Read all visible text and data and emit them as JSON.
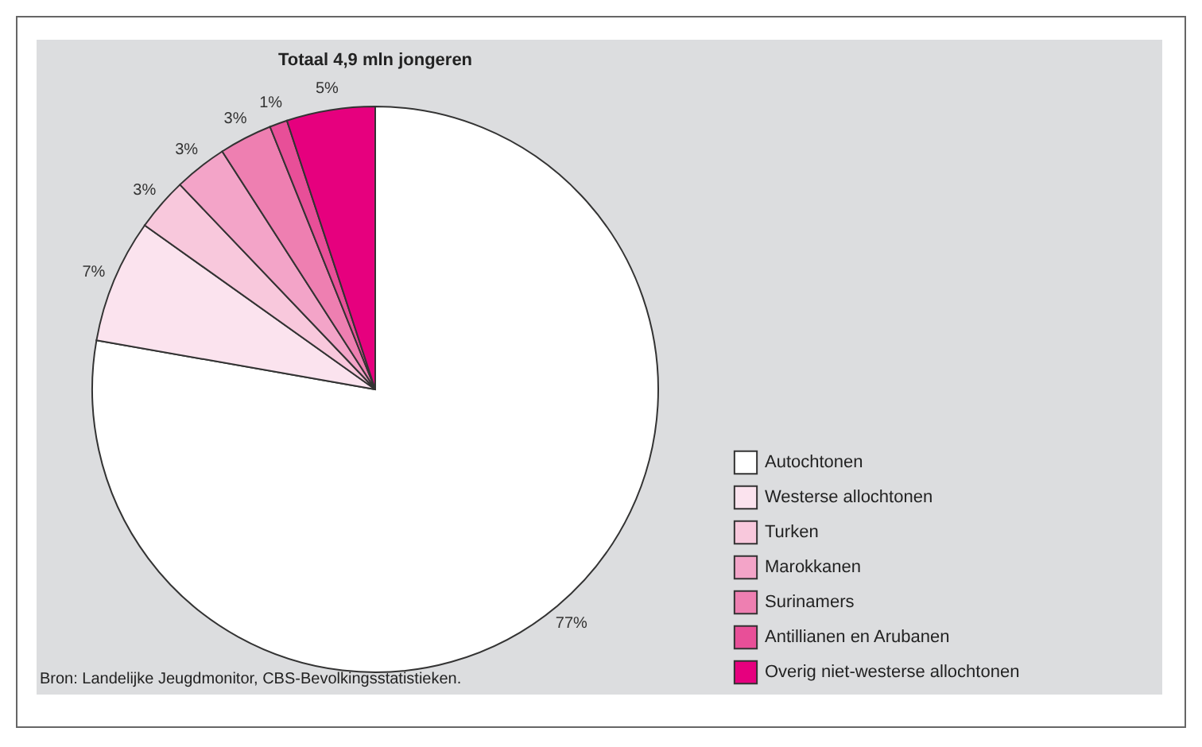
{
  "chart_data": {
    "type": "pie",
    "title": "Totaal 4,9 mln jongeren",
    "categories": [
      "Autochtonen",
      "Westerse allochtonen",
      "Turken",
      "Marokkanen",
      "Surinamers",
      "Antillianen en Arubanen",
      "Overig niet-westerse allochtonen"
    ],
    "values": [
      77,
      7,
      3,
      3,
      3,
      1,
      5
    ],
    "colors": [
      "#ffffff",
      "#fbe3ee",
      "#f8c8dc",
      "#f3a4c8",
      "#ee7fb1",
      "#e84f98",
      "#e6007e"
    ],
    "value_labels": [
      "77%",
      "7%",
      "3%",
      "3%",
      "3%",
      "1%",
      "5%"
    ],
    "legend": "bottom right",
    "annotations": [
      "Bron: Landelijke Jeugdmonitor, CBS-Bevolkingsstatistieken."
    ]
  }
}
